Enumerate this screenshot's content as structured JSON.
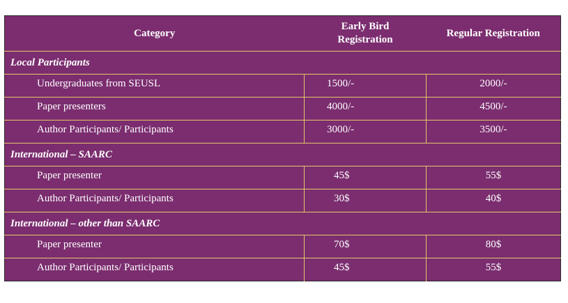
{
  "table": {
    "header": {
      "category": "Category",
      "early_line1": "Early Bird",
      "early_line2": "Registration",
      "regular": "Regular Registration"
    },
    "sections": [
      {
        "title": "Local Participants",
        "rows": [
          {
            "name": "Undergraduates from SEUSL",
            "early": "1500/-",
            "regular": "2000/-"
          },
          {
            "name": "Paper presenters",
            "early": "4000/-",
            "regular": "4500/-"
          },
          {
            "name": "Author Participants/ Participants",
            "early": "3000/-",
            "regular": "3500/-"
          }
        ]
      },
      {
        "title": "International – SAARC",
        "rows": [
          {
            "name": "Paper presenter",
            "early": "45$",
            "regular": "55$"
          },
          {
            "name": "Author Participants/ Participants",
            "early": "30$",
            "regular": "40$"
          }
        ]
      },
      {
        "title": "International – other than SAARC",
        "rows": [
          {
            "name": "Paper presenter",
            "early": "70$",
            "regular": "80$"
          },
          {
            "name": "Author Participants/ Participants",
            "early": "45$",
            "regular": "55$"
          }
        ]
      }
    ]
  },
  "colors": {
    "background": "#7b2d6f",
    "rule": "#e6c86a",
    "text": "#ffffff"
  }
}
